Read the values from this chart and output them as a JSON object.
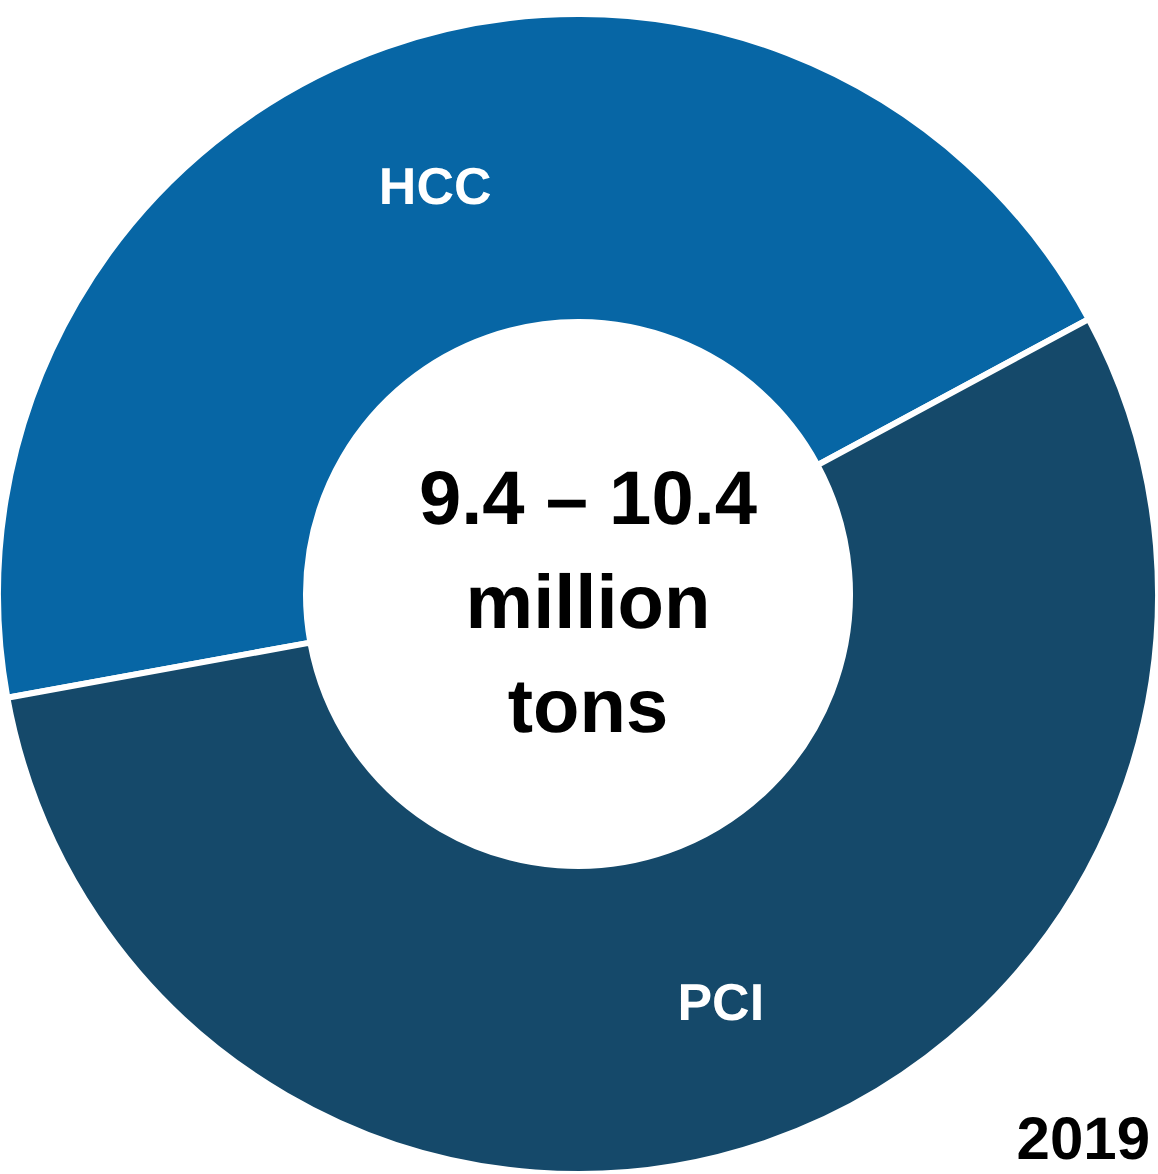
{
  "chart_data": {
    "type": "donut",
    "title": "9.4 – 10.4\nmillion\ntons",
    "categories": [
      "HCC",
      "PCI"
    ],
    "values": [
      45,
      55
    ],
    "colors": [
      "#0766a5",
      "#15496a"
    ],
    "annotations": [
      "2019"
    ],
    "legend": false
  }
}
